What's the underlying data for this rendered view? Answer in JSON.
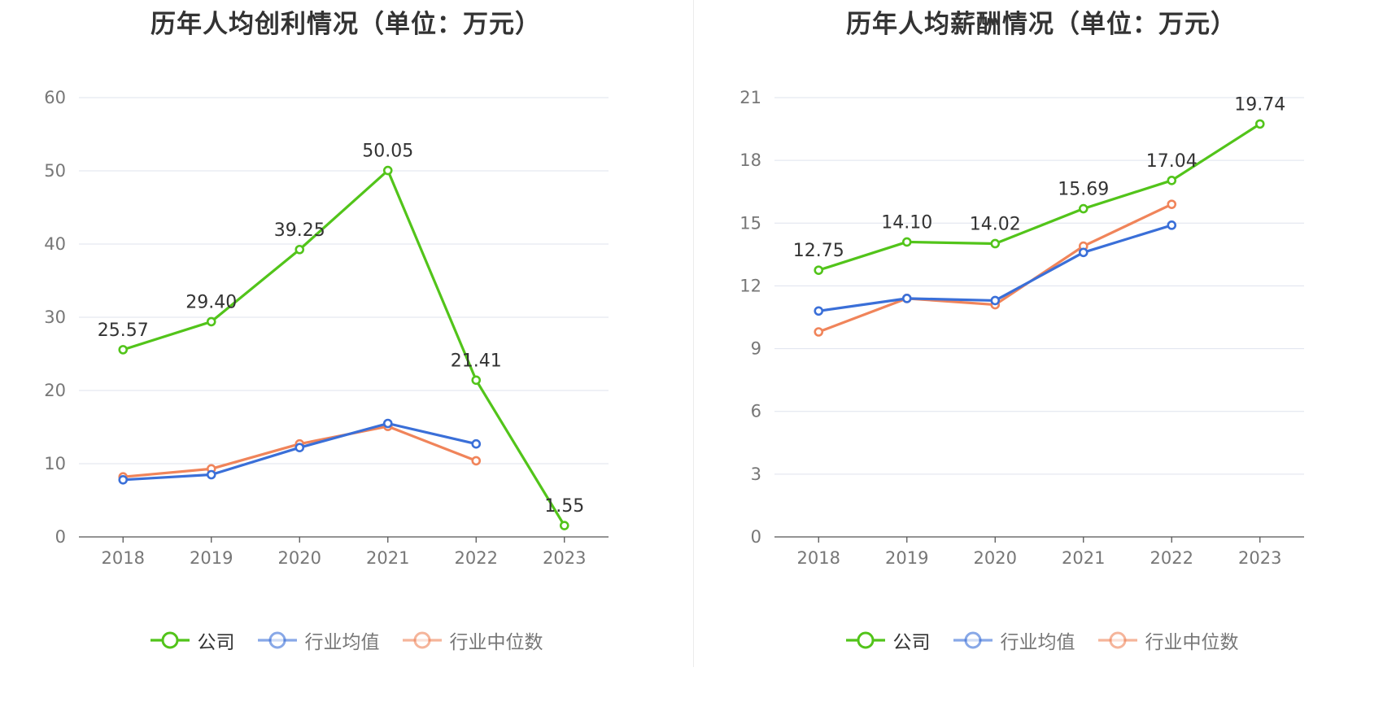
{
  "chart_data": [
    {
      "type": "line",
      "title": "历年人均创利情况（单位：万元）",
      "categories": [
        "2018",
        "2019",
        "2020",
        "2021",
        "2022",
        "2023"
      ],
      "ylim": [
        0,
        60
      ],
      "yticks": [
        0,
        10,
        20,
        30,
        40,
        50,
        60
      ],
      "grid": true,
      "legend_position": "bottom",
      "series": [
        {
          "name": "公司",
          "color": "#52c41a",
          "values": [
            25.57,
            29.4,
            39.25,
            50.05,
            21.41,
            1.55
          ],
          "labels": [
            "25.57",
            "29.40",
            "39.25",
            "50.05",
            "21.41",
            "1.55"
          ]
        },
        {
          "name": "行业均值",
          "color": "#3a6fd8",
          "values": [
            7.8,
            8.5,
            12.2,
            15.5,
            12.7,
            null
          ]
        },
        {
          "name": "行业中位数",
          "color": "#f0845a",
          "values": [
            8.2,
            9.3,
            12.7,
            15.1,
            10.4,
            null
          ]
        }
      ]
    },
    {
      "type": "line",
      "title": "历年人均薪酬情况（单位：万元）",
      "categories": [
        "2018",
        "2019",
        "2020",
        "2021",
        "2022",
        "2023"
      ],
      "ylim": [
        0,
        21
      ],
      "yticks": [
        0,
        3,
        6,
        9,
        12,
        15,
        18,
        21
      ],
      "grid": true,
      "legend_position": "bottom",
      "series": [
        {
          "name": "公司",
          "color": "#52c41a",
          "values": [
            12.75,
            14.1,
            14.02,
            15.69,
            17.04,
            19.74
          ],
          "labels": [
            "12.75",
            "14.10",
            "14.02",
            "15.69",
            "17.04",
            "19.74"
          ]
        },
        {
          "name": "行业均值",
          "color": "#3a6fd8",
          "values": [
            10.8,
            11.4,
            11.3,
            13.6,
            14.9,
            null
          ]
        },
        {
          "name": "行业中位数",
          "color": "#f0845a",
          "values": [
            9.8,
            11.4,
            11.1,
            13.9,
            15.9,
            null
          ]
        }
      ]
    }
  ]
}
